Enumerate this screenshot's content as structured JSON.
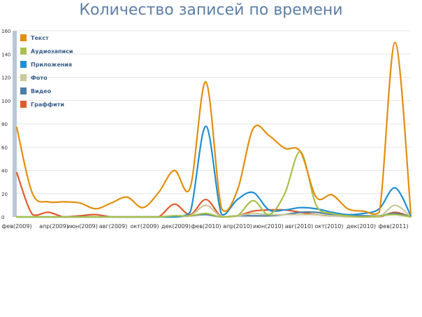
{
  "title": "Количество записей по времени",
  "colors": {
    "axis_bar": "#b8c7d6",
    "grid": "#e6e6e6"
  },
  "chart_data": {
    "type": "line",
    "title": "Количество записей по времени",
    "x_labels": [
      "фев(2009)",
      "апр(2009)",
      "июн(2009)",
      "авг(2009)",
      "окт(2009)",
      "дек(2009)",
      "фев(2010)",
      "апр(2010)",
      "июн(2010)",
      "авг(2010)",
      "окт(2010)",
      "дек(2010)",
      "фев(2011)"
    ],
    "y_ticks": [
      0,
      20,
      40,
      60,
      80,
      100,
      120,
      140,
      160
    ],
    "ylim": [
      0,
      160
    ],
    "legend_position": "top-left",
    "series": [
      {
        "name": "Текст",
        "color": "#e38e0c",
        "values": [
          77,
          20,
          13,
          13,
          12,
          7,
          12,
          17,
          8,
          21,
          40,
          25,
          116,
          7,
          23,
          76,
          70,
          59,
          56,
          17,
          19,
          7,
          5,
          4,
          150,
          3
        ]
      },
      {
        "name": "Аудиозаписи",
        "color": "#a8c04a",
        "values": [
          0,
          0,
          0,
          0,
          0,
          0,
          0,
          0,
          0,
          0,
          1,
          1,
          3,
          0,
          1,
          14,
          2,
          20,
          56,
          10,
          3,
          1,
          0,
          1,
          2,
          0
        ]
      },
      {
        "name": "Приложения",
        "color": "#1f8fd3",
        "values": [
          0,
          0,
          0,
          0,
          0,
          0,
          0,
          0,
          0,
          0,
          0,
          4,
          78,
          2,
          15,
          21,
          6,
          6,
          8,
          7,
          4,
          2,
          3,
          7,
          25,
          1
        ]
      },
      {
        "name": "Фото",
        "color": "#c9c99b",
        "values": [
          0,
          0,
          0,
          0,
          0,
          0,
          0,
          0,
          0,
          0,
          1,
          1,
          10,
          0,
          1,
          3,
          2,
          2,
          2,
          2,
          1,
          0,
          0,
          0,
          10,
          0
        ]
      },
      {
        "name": "Видео",
        "color": "#4f7ea3",
        "values": [
          0,
          0,
          0,
          0,
          0,
          0,
          0,
          0,
          0,
          0,
          0,
          1,
          2,
          0,
          1,
          1,
          1,
          2,
          4,
          4,
          2,
          1,
          1,
          1,
          3,
          0
        ]
      },
      {
        "name": "Граффити",
        "color": "#e05a2a",
        "values": [
          38,
          2,
          4,
          0,
          1,
          2,
          0,
          0,
          0,
          0,
          11,
          2,
          15,
          0,
          1,
          5,
          6,
          6,
          4,
          2,
          1,
          1,
          0,
          0,
          4,
          0
        ]
      }
    ]
  }
}
